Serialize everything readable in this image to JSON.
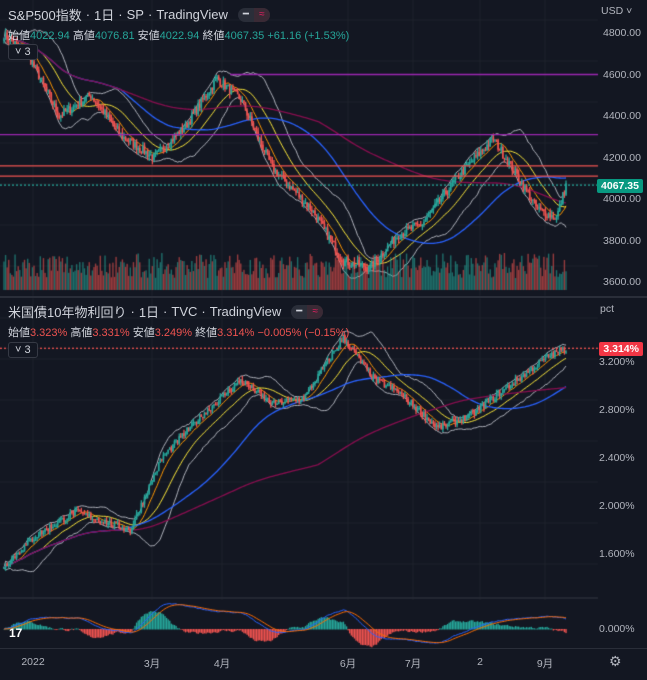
{
  "top": {
    "symbol": "S&P500指数",
    "interval": "1日",
    "exchange": "SP",
    "source": "TradingView",
    "ohlc": {
      "open_label": "始値",
      "open": "4022.94",
      "high_label": "高値",
      "high": "4076.81",
      "low_label": "安値",
      "low": "4022.94",
      "close_label": "終値",
      "close": "4067.35",
      "change": "+61.16 (+1.53%)"
    },
    "indicators_toggle": "3",
    "currency": "USD ˅",
    "price_ticks": [
      "4800.00",
      "4600.00",
      "4400.00",
      "4200.00",
      "4000.00",
      "3800.00",
      "3600.00"
    ],
    "last_price": "4067.35",
    "keypoints": [
      [
        0,
        4790
      ],
      [
        15,
        4700
      ],
      [
        35,
        4400
      ],
      [
        55,
        4500
      ],
      [
        75,
        4300
      ],
      [
        95,
        4200
      ],
      [
        115,
        4350
      ],
      [
        135,
        4580
      ],
      [
        150,
        4480
      ],
      [
        170,
        4150
      ],
      [
        195,
        3950
      ],
      [
        215,
        3700
      ],
      [
        232,
        3670
      ],
      [
        250,
        3830
      ],
      [
        265,
        3880
      ],
      [
        290,
        4130
      ],
      [
        310,
        4290
      ],
      [
        322,
        4150
      ],
      [
        338,
        3950
      ],
      [
        350,
        3910
      ],
      [
        356,
        4067
      ]
    ]
  },
  "bottom": {
    "symbol": "米国債10年物利回り",
    "interval": "1日",
    "exchange": "TVC",
    "source": "TradingView",
    "ohlc": {
      "open_label": "始値",
      "open": "3.323%",
      "high_label": "高値",
      "high": "3.331%",
      "low_label": "安値",
      "low": "3.249%",
      "close_label": "終値",
      "close": "3.314%",
      "change": "−0.005% (−0.15%)"
    },
    "indicators_toggle": "3",
    "unit": "pct",
    "yield_ticks": [
      "3.200%",
      "2.800%",
      "2.400%",
      "2.000%",
      "1.600%"
    ],
    "macd_tick": "0.000%",
    "last_value": "3.314%",
    "keypoints": [
      [
        0,
        1.5
      ],
      [
        20,
        1.75
      ],
      [
        45,
        1.95
      ],
      [
        80,
        1.8
      ],
      [
        100,
        2.4
      ],
      [
        125,
        2.75
      ],
      [
        150,
        3.05
      ],
      [
        170,
        2.85
      ],
      [
        190,
        2.9
      ],
      [
        215,
        3.4
      ],
      [
        235,
        3.05
      ],
      [
        250,
        2.95
      ],
      [
        275,
        2.65
      ],
      [
        295,
        2.75
      ],
      [
        320,
        3.0
      ],
      [
        345,
        3.25
      ],
      [
        356,
        3.31
      ]
    ]
  },
  "time_axis": [
    "2022",
    "3月",
    "4月",
    "6月",
    "7月",
    "2",
    "9月"
  ],
  "colors": {
    "up": "#26a69a",
    "down": "#ef5350",
    "bg": "#131722"
  }
}
